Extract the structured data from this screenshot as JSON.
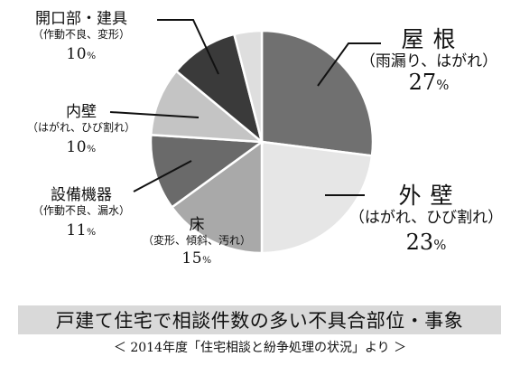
{
  "chart_data": {
    "type": "pie",
    "title": "戸建て住宅で相談件数の多い不具合部位・事象",
    "subtitle": "＜ 2014年度「住宅相談と紛争処理の状況」より ＞",
    "unit": "%",
    "slices": [
      {
        "label": "屋 根",
        "detail": "（雨漏り、はがれ）",
        "value": 27,
        "color": "#707070"
      },
      {
        "label": "外 壁",
        "detail": "（はがれ、ひび割れ）",
        "value": 23,
        "color": "#e6e6e6"
      },
      {
        "label": "床",
        "detail": "（変形、傾斜、汚れ）",
        "value": 15,
        "color": "#a9a9a9"
      },
      {
        "label": "設備機器",
        "detail": "（作動不良、漏水）",
        "value": 11,
        "color": "#6a6a6a"
      },
      {
        "label": "内壁",
        "detail": "（はがれ、ひび割れ）",
        "value": 10,
        "color": "#c4c4c4"
      },
      {
        "label": "開口部・建具",
        "detail": "（作動不良、変形）",
        "value": 10,
        "color": "#3a3a3a"
      },
      {
        "label": "",
        "detail": "",
        "value": 4,
        "color": "#dedede"
      }
    ],
    "legend": "none",
    "grid": false
  }
}
